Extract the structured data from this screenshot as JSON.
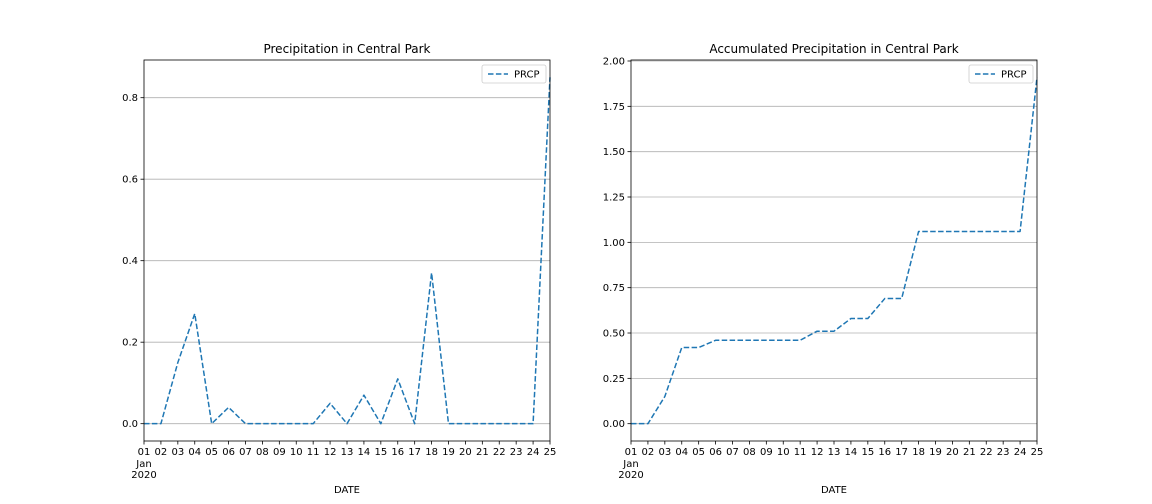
{
  "chart_data": [
    {
      "type": "line",
      "title": "Precipitation in Central Park",
      "xlabel": "DATE",
      "ylabel": "",
      "x": [
        "01",
        "02",
        "03",
        "04",
        "05",
        "06",
        "07",
        "08",
        "09",
        "10",
        "11",
        "12",
        "13",
        "14",
        "15",
        "16",
        "17",
        "18",
        "19",
        "20",
        "21",
        "22",
        "23",
        "24",
        "25"
      ],
      "x_sub_label": [
        "Jan",
        "2020"
      ],
      "series": [
        {
          "name": "PRCP",
          "color": "#1f77b4",
          "style": "dashed",
          "values": [
            0.0,
            0.0,
            0.15,
            0.27,
            0.0,
            0.04,
            0.0,
            0.0,
            0.0,
            0.0,
            0.0,
            0.05,
            0.0,
            0.07,
            0.0,
            0.11,
            0.0,
            0.37,
            0.0,
            0.0,
            0.0,
            0.0,
            0.0,
            0.0,
            0.85
          ]
        }
      ],
      "ylim": [
        -0.0425,
        0.8925
      ],
      "yticks": [
        "0.0",
        "0.2",
        "0.4",
        "0.6",
        "0.8"
      ],
      "ytick_values": [
        0.0,
        0.2,
        0.4,
        0.6,
        0.8
      ],
      "grid": "y",
      "legend": "upper-right"
    },
    {
      "type": "line",
      "title": "Accumulated Precipitation in Central Park",
      "xlabel": "DATE",
      "ylabel": "",
      "x": [
        "01",
        "02",
        "03",
        "04",
        "05",
        "06",
        "07",
        "08",
        "09",
        "10",
        "11",
        "12",
        "13",
        "14",
        "15",
        "16",
        "17",
        "18",
        "19",
        "20",
        "21",
        "22",
        "23",
        "24",
        "25"
      ],
      "x_sub_label": [
        "Jan",
        "2020"
      ],
      "series": [
        {
          "name": "PRCP",
          "color": "#1f77b4",
          "style": "dashed",
          "values": [
            0.0,
            0.0,
            0.15,
            0.42,
            0.42,
            0.46,
            0.46,
            0.46,
            0.46,
            0.46,
            0.46,
            0.51,
            0.51,
            0.58,
            0.58,
            0.69,
            0.69,
            1.06,
            1.06,
            1.06,
            1.06,
            1.06,
            1.06,
            1.06,
            1.91
          ]
        }
      ],
      "ylim": [
        -0.0955,
        2.0055
      ],
      "yticks": [
        "0.00",
        "0.25",
        "0.50",
        "0.75",
        "1.00",
        "1.25",
        "1.50",
        "1.75",
        "2.00"
      ],
      "ytick_values": [
        0.0,
        0.25,
        0.5,
        0.75,
        1.0,
        1.25,
        1.5,
        1.75,
        2.0
      ],
      "grid": "y",
      "legend": "upper-right"
    }
  ]
}
